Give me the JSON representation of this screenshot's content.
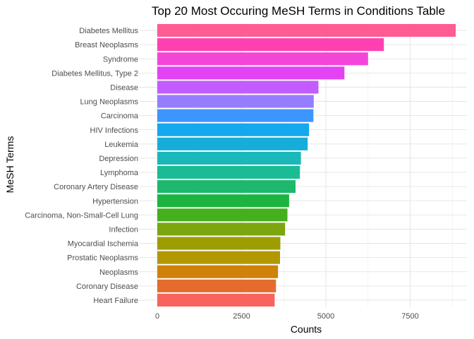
{
  "chart_data": {
    "type": "bar",
    "orientation": "horizontal",
    "title": "Top 20 Most Occuring MeSH Terms in Conditions Table",
    "xlabel": "Counts",
    "ylabel": "MeSH Terms",
    "xlim": [
      0,
      9000
    ],
    "x_ticks": [
      0,
      2500,
      5000,
      7500
    ],
    "x_tick_labels": [
      "0",
      "2500",
      "5000",
      "7500"
    ],
    "grid": true,
    "legend": "none",
    "categories": [
      "Diabetes Mellitus",
      "Breast Neoplasms",
      "Syndrome",
      "Diabetes Mellitus, Type 2",
      "Disease",
      "Lung Neoplasms",
      "Carcinoma",
      "HIV Infections",
      "Leukemia",
      "Depression",
      "Lymphoma",
      "Coronary Artery Disease",
      "Hypertension",
      "Carcinoma, Non-Small-Cell Lung",
      "Infection",
      "Myocardial Ischemia",
      "Prostatic Neoplasms",
      "Neoplasms",
      "Coronary Disease",
      "Heart Failure"
    ],
    "values": [
      8850,
      6720,
      6250,
      5550,
      4780,
      4640,
      4630,
      4500,
      4460,
      4260,
      4230,
      4100,
      3910,
      3860,
      3790,
      3650,
      3640,
      3580,
      3520,
      3480
    ],
    "colors": [
      "#FF5B94",
      "#FF40B1",
      "#F544D8",
      "#E342F5",
      "#C35CFF",
      "#967DFF",
      "#3D96FF",
      "#14A8EE",
      "#17ADD9",
      "#1AB8B8",
      "#1ABC94",
      "#1DB86E",
      "#1DB33F",
      "#45AF1D",
      "#7BA60F",
      "#9C9E00",
      "#B39800",
      "#CE8208",
      "#E56B2F",
      "#F8645D"
    ]
  }
}
